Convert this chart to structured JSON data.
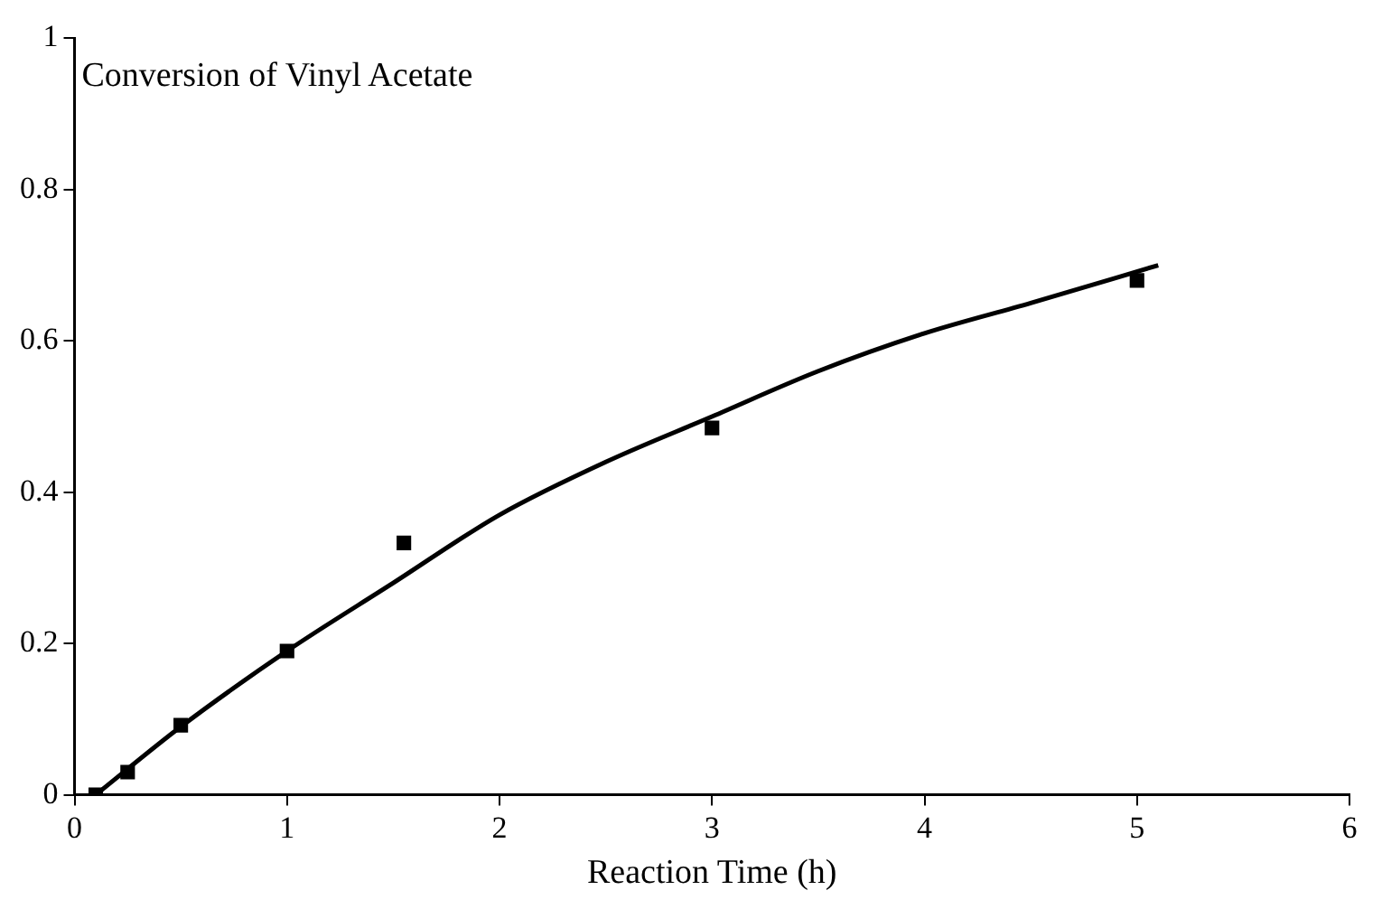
{
  "chart_data": {
    "type": "scatter",
    "title": "Conversion of Vinyl Acetate",
    "xlabel": "Reaction Time (h)",
    "xlim": [
      0,
      6
    ],
    "xticks": [
      0,
      1,
      2,
      3,
      4,
      5,
      6
    ],
    "ylim": [
      0,
      1
    ],
    "yticks": [
      0,
      0.2,
      0.4,
      0.6,
      0.8,
      1
    ],
    "grid": false,
    "legend": false,
    "series": [
      {
        "type": "scatter",
        "color": "#000000",
        "marker": "square",
        "x": [
          0.1,
          0.25,
          0.5,
          1,
          1.55,
          3,
          5
        ],
        "values": [
          0,
          0.03,
          0.092,
          0.19,
          0.333,
          0.485,
          0.68
        ]
      },
      {
        "type": "line",
        "color": "#000000",
        "marker": "none",
        "line_style": "solid",
        "x": [
          0.1,
          0.5,
          1,
          1.5,
          2,
          2.5,
          3,
          3.5,
          4,
          4.5,
          5.1
        ],
        "values": [
          0,
          0.09,
          0.19,
          0.28,
          0.37,
          0.44,
          0.5,
          0.56,
          0.61,
          0.65,
          0.7
        ]
      }
    ]
  }
}
